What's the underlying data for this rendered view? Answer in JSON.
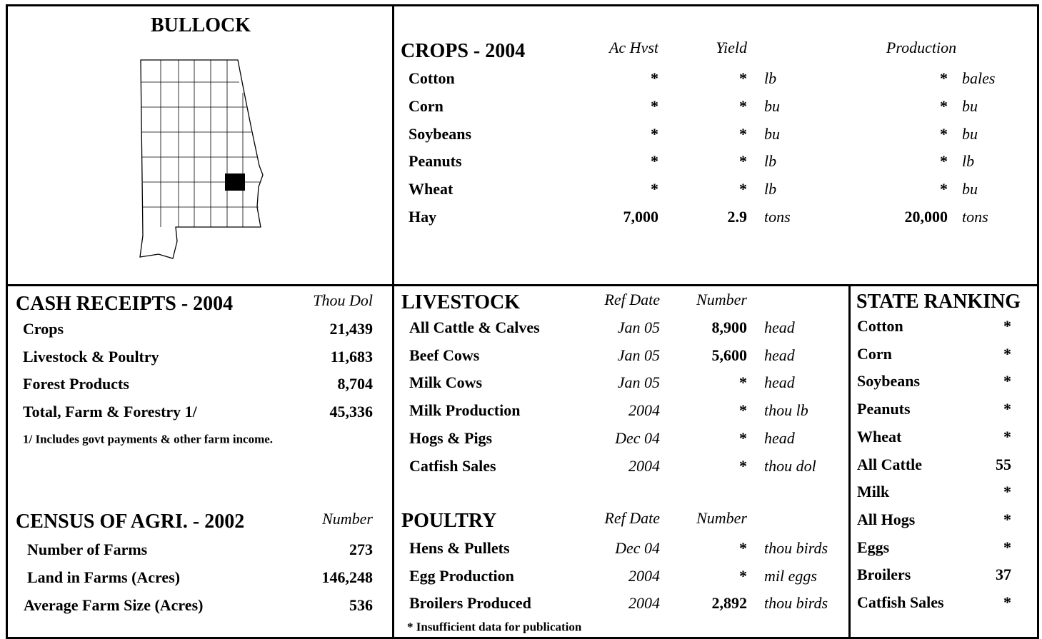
{
  "county": "BULLOCK",
  "crops": {
    "title": "CROPS - 2004",
    "headers": [
      "Ac Hvst",
      "Yield",
      "Production"
    ],
    "rows": [
      [
        "Cotton",
        "*",
        "*",
        "lb",
        "*",
        "bales"
      ],
      [
        "Corn",
        "*",
        "*",
        "bu",
        "*",
        "bu"
      ],
      [
        "Soybeans",
        "*",
        "*",
        "bu",
        "*",
        "bu"
      ],
      [
        "Peanuts",
        "*",
        "*",
        "lb",
        "*",
        "lb"
      ],
      [
        "Wheat",
        "*",
        "*",
        "lb",
        "*",
        "bu"
      ],
      [
        "Hay",
        "7,000",
        "2.9",
        "tons",
        "20,000",
        "tons"
      ]
    ]
  },
  "cash_receipts": {
    "title": "CASH RECEIPTS - 2004",
    "header": "Thou Dol",
    "rows": [
      [
        "Crops",
        "21,439"
      ],
      [
        "Livestock & Poultry",
        "11,683"
      ],
      [
        "Forest Products",
        "8,704"
      ],
      [
        "Total, Farm & Forestry 1/",
        "45,336"
      ]
    ],
    "note": "1/  Includes govt payments & other farm income."
  },
  "census": {
    "title": "CENSUS OF AGRI. - 2002",
    "header": "Number",
    "rows": [
      [
        "Number of Farms",
        "273"
      ],
      [
        "Land in Farms (Acres)",
        "146,248"
      ],
      [
        "Average Farm Size (Acres)",
        "536"
      ]
    ]
  },
  "livestock": {
    "title": "LIVESTOCK",
    "headers": [
      "Ref Date",
      "Number"
    ],
    "rows": [
      [
        "All Cattle & Calves",
        "Jan 05",
        "8,900",
        "head"
      ],
      [
        "Beef Cows",
        "Jan 05",
        "5,600",
        "head"
      ],
      [
        "Milk Cows",
        "Jan 05",
        "*",
        "head"
      ],
      [
        "Milk Production",
        "2004",
        "*",
        "thou lb"
      ],
      [
        "Hogs & Pigs",
        "Dec 04",
        "*",
        "head"
      ],
      [
        "Catfish Sales",
        "2004",
        "*",
        "thou dol"
      ]
    ]
  },
  "poultry": {
    "title": "POULTRY",
    "headers": [
      "Ref Date",
      "Number"
    ],
    "rows": [
      [
        "Hens & Pullets",
        "Dec 04",
        "*",
        "thou birds"
      ],
      [
        "Egg Production",
        "2004",
        "*",
        "mil eggs"
      ],
      [
        "Broilers Produced",
        "2004",
        "2,892",
        "thou birds"
      ]
    ],
    "footnote": "* Insufficient data for publication"
  },
  "state_ranking": {
    "title": "STATE RANKING",
    "rows": [
      [
        "Cotton",
        "*"
      ],
      [
        "Corn",
        "*"
      ],
      [
        "Soybeans",
        "*"
      ],
      [
        "Peanuts",
        "*"
      ],
      [
        "Wheat",
        "*"
      ],
      [
        "All Cattle",
        "55"
      ],
      [
        "Milk",
        "*"
      ],
      [
        "All Hogs",
        "*"
      ],
      [
        "Eggs",
        "*"
      ],
      [
        "Broilers",
        "37"
      ],
      [
        "Catfish Sales",
        "*"
      ]
    ]
  }
}
